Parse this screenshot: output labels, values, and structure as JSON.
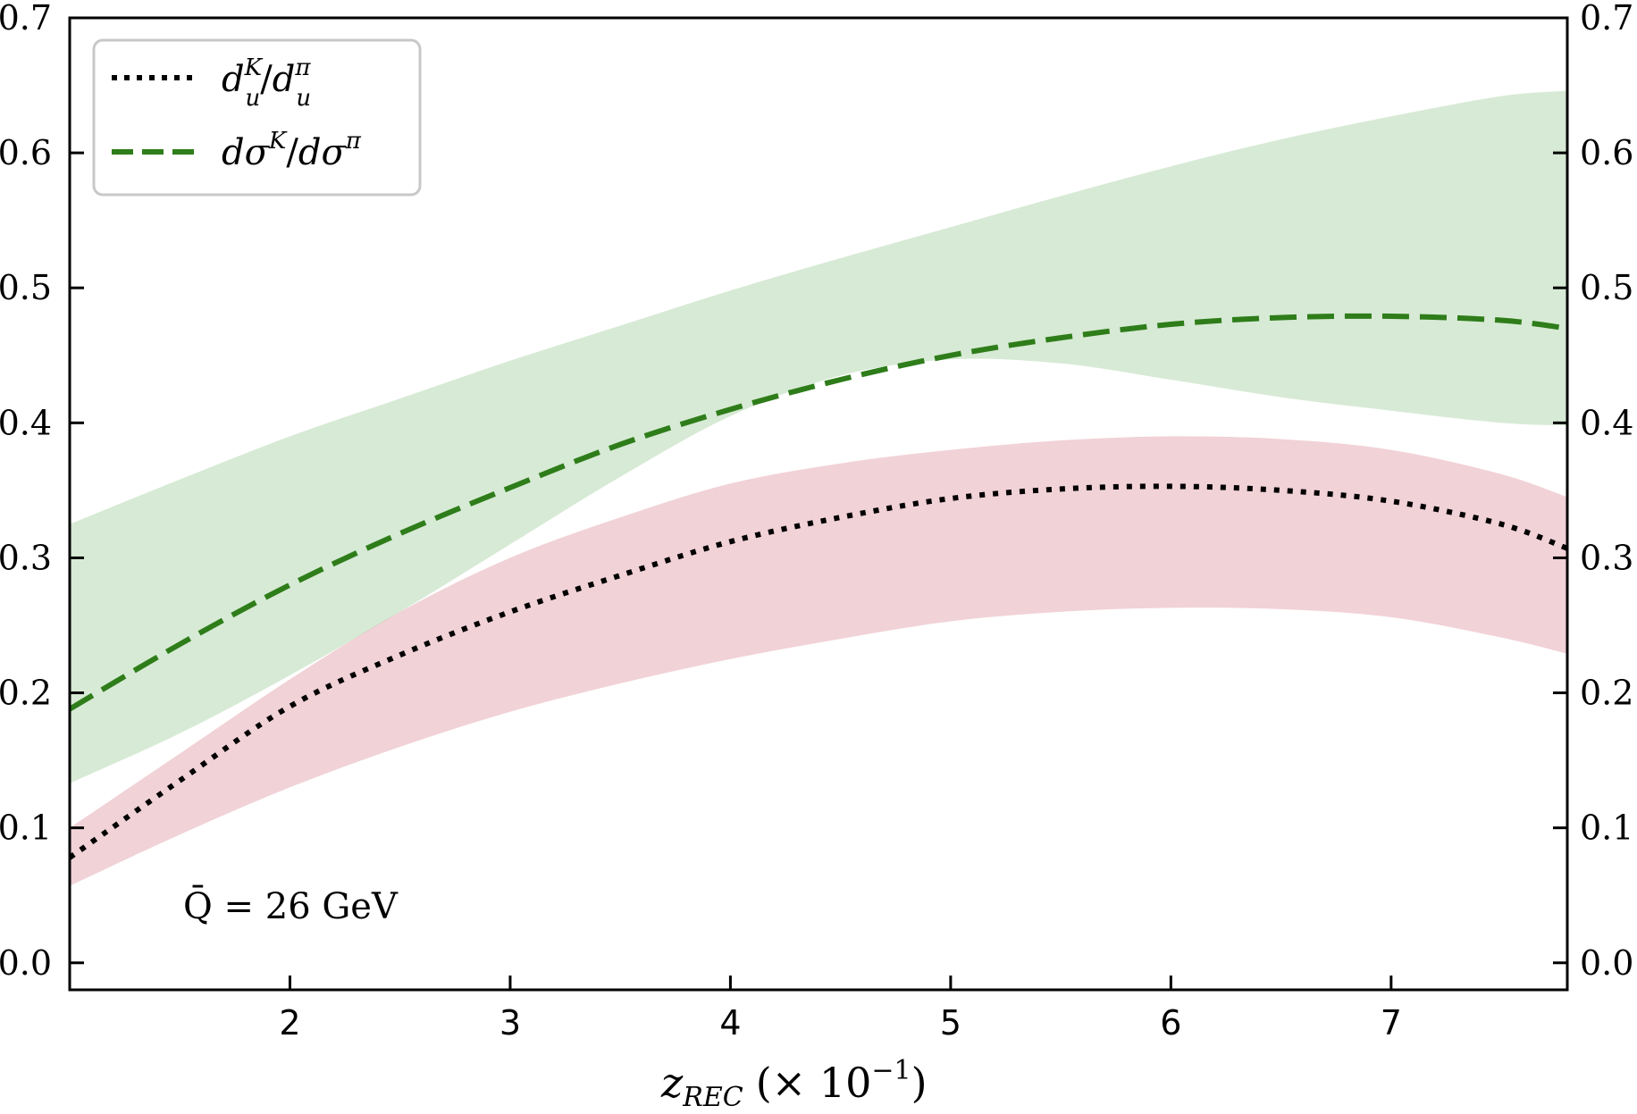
{
  "chart_data": {
    "type": "line",
    "xlabel_main": "z",
    "xlabel_sub": "REC",
    "xlabel_unit": "(× 10",
    "xlabel_exp": "−1",
    "xlabel_close": ")",
    "xlim": [
      1.0,
      7.8
    ],
    "ylim": [
      -0.02,
      0.7
    ],
    "xticks": [
      2,
      3,
      4,
      5,
      6,
      7
    ],
    "xtick_labels": [
      "2",
      "3",
      "4",
      "5",
      "6",
      "7"
    ],
    "yticks": [
      0.0,
      0.1,
      0.2,
      0.3,
      0.4,
      0.5,
      0.6,
      0.7
    ],
    "ytick_labels": [
      "0.0",
      "0.1",
      "0.2",
      "0.3",
      "0.4",
      "0.5",
      "0.6",
      "0.7"
    ],
    "annotation": {
      "text": "Q̄ = 26 GeV"
    },
    "legend": {
      "placement": "top-left",
      "entries": [
        {
          "series": 0,
          "base": "d",
          "sup": "K",
          "sub": "u",
          "slash": "/",
          "base2": "d",
          "sup2": "π",
          "sub2": "u"
        },
        {
          "series": 1,
          "base": "dσ",
          "sup": "K",
          "slash": "/",
          "base2": "dσ",
          "sup2": "π"
        }
      ]
    },
    "series": [
      {
        "style": "dotted",
        "color": "#000000",
        "band_color": "#e8b4bc",
        "band_opacity": 0.6,
        "x": [
          1.0,
          1.5,
          2.0,
          2.5,
          3.0,
          3.5,
          4.0,
          4.5,
          5.0,
          5.5,
          6.0,
          6.5,
          7.0,
          7.5,
          7.8
        ],
        "values": [
          0.078,
          0.135,
          0.19,
          0.228,
          0.26,
          0.287,
          0.312,
          0.33,
          0.344,
          0.351,
          0.353,
          0.35,
          0.342,
          0.325,
          0.307
        ],
        "band_low": [
          0.057,
          0.095,
          0.13,
          0.16,
          0.186,
          0.207,
          0.225,
          0.24,
          0.253,
          0.26,
          0.263,
          0.262,
          0.256,
          0.241,
          0.229
        ],
        "band_high": [
          0.1,
          0.155,
          0.21,
          0.26,
          0.3,
          0.33,
          0.355,
          0.37,
          0.38,
          0.387,
          0.39,
          0.388,
          0.38,
          0.362,
          0.345
        ]
      },
      {
        "style": "dashed",
        "color": "#2e7d1a",
        "band_color": "#b6d9b2",
        "band_opacity": 0.55,
        "x": [
          1.0,
          1.5,
          2.0,
          2.5,
          3.0,
          3.5,
          4.0,
          4.5,
          5.0,
          5.5,
          6.0,
          6.5,
          7.0,
          7.5,
          7.8
        ],
        "values": [
          0.188,
          0.236,
          0.28,
          0.318,
          0.352,
          0.384,
          0.41,
          0.432,
          0.45,
          0.463,
          0.473,
          0.478,
          0.479,
          0.476,
          0.47
        ],
        "band_low": [
          0.133,
          0.17,
          0.213,
          0.26,
          0.31,
          0.36,
          0.405,
          0.435,
          0.447,
          0.444,
          0.432,
          0.419,
          0.409,
          0.4,
          0.398
        ],
        "band_high": [
          0.325,
          0.358,
          0.39,
          0.418,
          0.446,
          0.472,
          0.498,
          0.522,
          0.545,
          0.568,
          0.59,
          0.61,
          0.627,
          0.642,
          0.646
        ]
      }
    ]
  }
}
